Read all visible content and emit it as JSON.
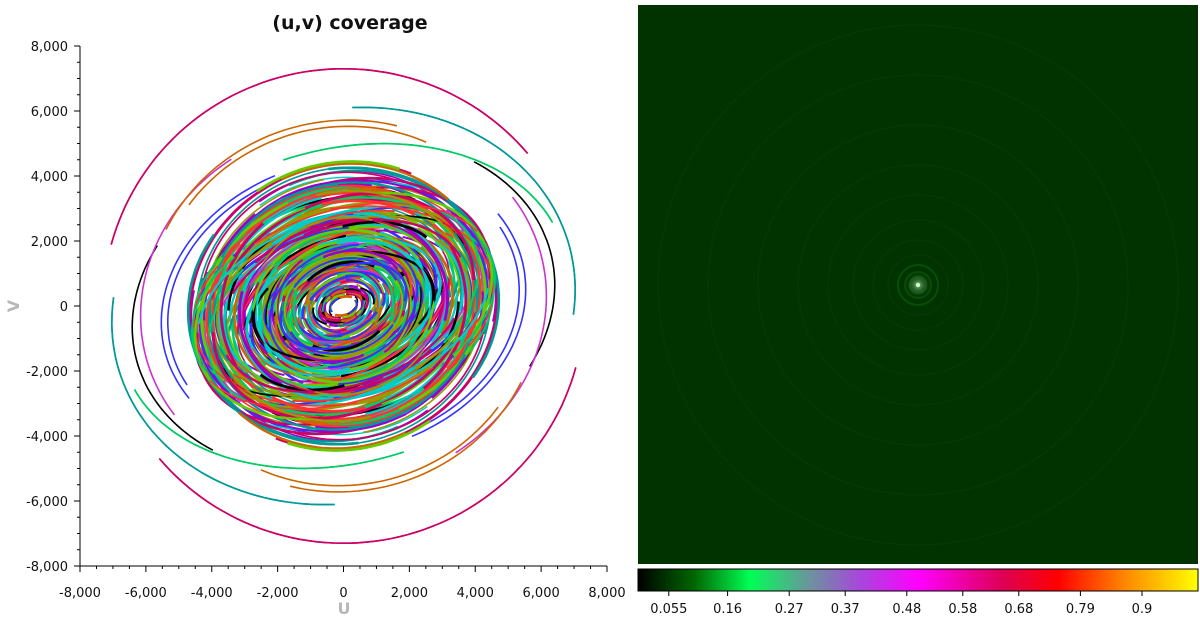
{
  "chart_data": [
    {
      "type": "scatter",
      "title": "(u,v) coverage",
      "xlabel": "U",
      "ylabel": "V",
      "xlim": [
        -8000,
        8000
      ],
      "ylim": [
        -8000,
        8000
      ],
      "xticks": [
        -8000,
        -6000,
        -4000,
        -2000,
        0,
        2000,
        4000,
        6000,
        8000
      ],
      "yticks": [
        8000,
        6000,
        4000,
        2000,
        0,
        -2000,
        -4000,
        -6000,
        -8000
      ],
      "xtick_labels": [
        "-8,000",
        "-6,000",
        "-4,000",
        "-2,000",
        "0",
        "2,000",
        "4,000",
        "6,000",
        "8,000"
      ],
      "ytick_labels": [
        "8,000",
        "6,000",
        "4,000",
        "2,000",
        "0",
        "-2,000",
        "-4,000",
        "-6,000",
        "-8,000"
      ],
      "grid": false,
      "series_colors": [
        "#cc0066",
        "#00cc66",
        "#009999",
        "#000000",
        "#9900cc",
        "#cc6600",
        "#66cc00",
        "#ff3333",
        "#3333ff",
        "#00cccc",
        "#cc33cc",
        "#999900"
      ],
      "tracks": [
        {
          "r": 7300,
          "a0": 205,
          "a1": 330,
          "ratio": 1.0,
          "color": "#cc0066"
        },
        {
          "r": 7300,
          "a0": 25,
          "a1": 150,
          "ratio": 1.0,
          "color": "#cc0066"
        },
        {
          "r": 7100,
          "a0": 160,
          "a1": 255,
          "ratio": 0.85,
          "color": "#009999"
        },
        {
          "r": 7100,
          "a0": 340,
          "a1": 75,
          "ratio": 0.85,
          "color": "#009999"
        },
        {
          "r": 6900,
          "a0": 10,
          "a1": 95,
          "ratio": 0.7,
          "color": "#00cc66"
        },
        {
          "r": 6900,
          "a0": 190,
          "a1": 275,
          "ratio": 0.7,
          "color": "#00cc66"
        },
        {
          "r": 6500,
          "a0": 140,
          "a1": 220,
          "ratio": 0.78,
          "color": "#000000"
        },
        {
          "r": 6200,
          "a0": 290,
          "a1": 20,
          "ratio": 0.9,
          "color": "#cc33cc"
        },
        {
          "r": 6000,
          "a0": 60,
          "a1": 140,
          "ratio": 0.95,
          "color": "#cc6600"
        },
        {
          "r": 5800,
          "a0": 230,
          "a1": 310,
          "ratio": 0.95,
          "color": "#cc6600"
        },
        {
          "r": 5600,
          "a0": 100,
          "a1": 200,
          "ratio": 0.8,
          "color": "#3333ff"
        },
        {
          "r": 5400,
          "a0": 275,
          "a1": 15,
          "ratio": 0.8,
          "color": "#3333ff"
        }
      ]
    },
    {
      "type": "heatmap",
      "colorbar_ticks": [
        0.055,
        0.16,
        0.27,
        0.37,
        0.48,
        0.58,
        0.68,
        0.79,
        0.9
      ],
      "colorbar_tick_labels": [
        "0.055",
        "0.16",
        "0.27",
        "0.37",
        "0.48",
        "0.58",
        "0.68",
        "0.79",
        "0.9"
      ],
      "colorbar_range": [
        0,
        1
      ],
      "colorbar_stops": [
        {
          "v": 0.0,
          "color": "#000000"
        },
        {
          "v": 0.1,
          "color": "#006600"
        },
        {
          "v": 0.2,
          "color": "#00ff55"
        },
        {
          "v": 0.3,
          "color": "#669999"
        },
        {
          "v": 0.4,
          "color": "#aa44dd"
        },
        {
          "v": 0.5,
          "color": "#ff00ff"
        },
        {
          "v": 0.65,
          "color": "#dd0055"
        },
        {
          "v": 0.75,
          "color": "#ff0000"
        },
        {
          "v": 0.87,
          "color": "#ff8800"
        },
        {
          "v": 1.0,
          "color": "#ffff00"
        }
      ],
      "background_color": "#003300",
      "peak_color": "#ccffcc",
      "peak_value": 1.0
    }
  ]
}
